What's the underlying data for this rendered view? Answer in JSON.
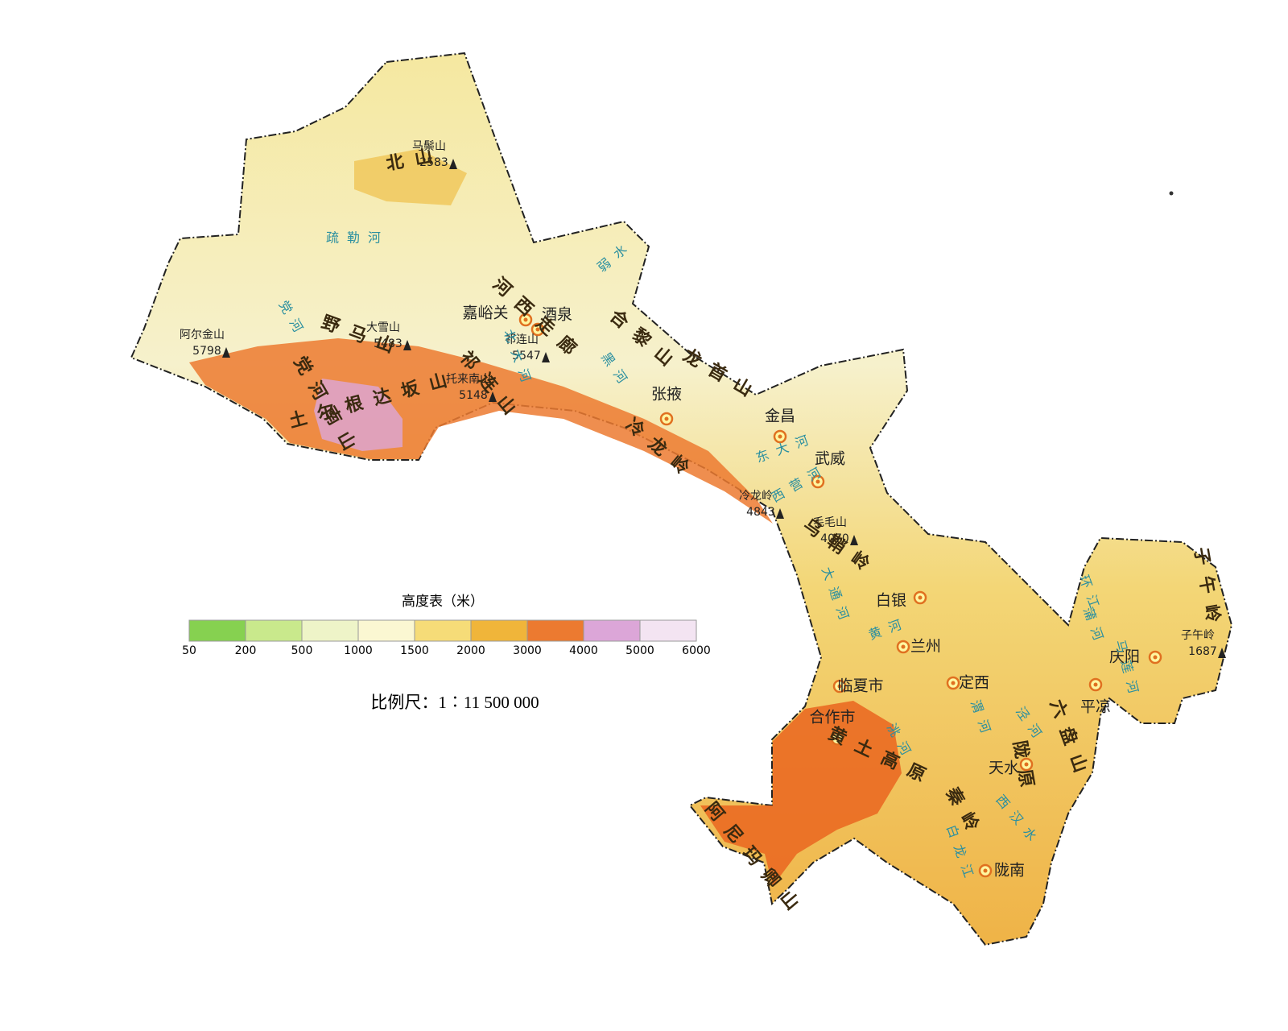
{
  "legend": {
    "title": "高度表（米）",
    "ticks": [
      "50",
      "200",
      "500",
      "1000",
      "1500",
      "2000",
      "3000",
      "4000",
      "5000",
      "6000"
    ],
    "colors": [
      "#86d150",
      "#c9e98c",
      "#eef4c8",
      "#fbf7d2",
      "#f6dc78",
      "#f0b53a",
      "#ec7a30",
      "#dca6d8",
      "#f3e4f2"
    ]
  },
  "scale": "比例尺：1∶11 500 000",
  "cities": [
    "嘉峪关",
    "酒泉",
    "张掖",
    "金昌",
    "武威",
    "白银",
    "兰州",
    "临夏市",
    "定西",
    "合作市",
    "天水",
    "陇南",
    "庆阳",
    "平凉"
  ],
  "peaks": [
    {
      "name": "马鬃山",
      "elevation": "2583"
    },
    {
      "name": "阿尔金山",
      "elevation": "5798"
    },
    {
      "name": "大雪山",
      "elevation": "5483"
    },
    {
      "name": "祁连山",
      "elevation": "5547"
    },
    {
      "name": "托来南山",
      "elevation": "5148"
    },
    {
      "name": "冷龙岭",
      "elevation": "4843"
    },
    {
      "name": "毛毛山",
      "elevation": "4070"
    },
    {
      "name": "子午岭",
      "elevation": "1687"
    }
  ],
  "ranges": [
    "北山",
    "河西走廊",
    "祁连山",
    "野马山",
    "党河南山",
    "土尔根达坂山",
    "合黎山",
    "龙首山",
    "冷龙岭",
    "乌鞘岭",
    "六盘山",
    "子午岭",
    "陇原",
    "黄土高原",
    "秦岭",
    "阿尼玛卿山"
  ],
  "rivers": [
    "疏勒河",
    "弱水",
    "党河",
    "北大河",
    "黑河",
    "大通河",
    "黄河",
    "洮河",
    "渭河",
    "泾河",
    "环江",
    "蒲河",
    "马莲河",
    "西汉水",
    "白龙江",
    "东大河",
    "西营河"
  ]
}
